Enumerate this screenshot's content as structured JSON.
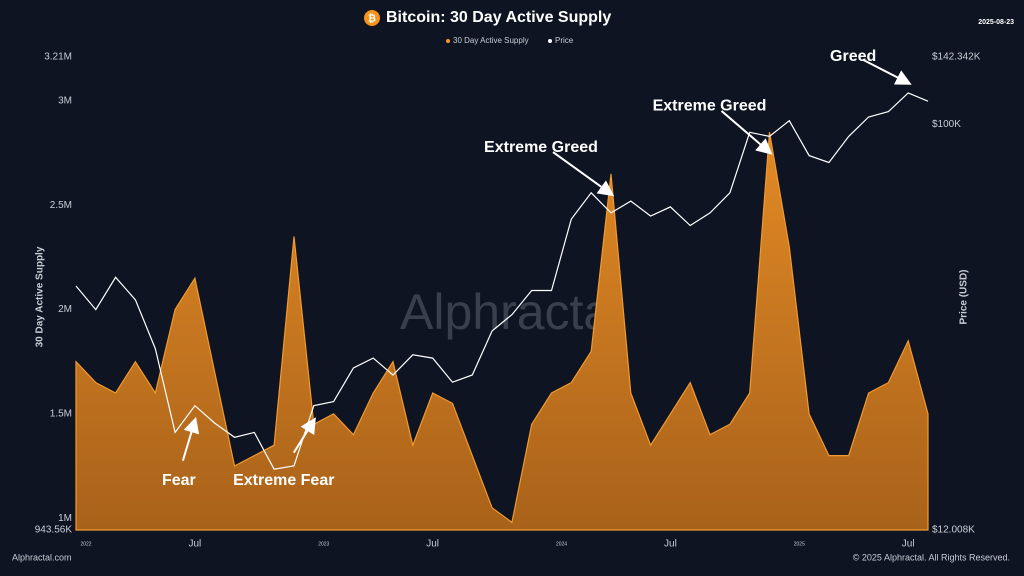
{
  "chart_data": {
    "type": "area_line",
    "title": "Bitcoin: 30 Day Active Supply",
    "date": "2025-08-23",
    "ylabel": "30 Day Active Supply",
    "y2label": "Price (USD)",
    "watermark": "Alphractal",
    "footer_left": "Alphractal.com",
    "footer_right": "© 2025 Alphractal. All Rights Reserved.",
    "x": [
      "2022-01",
      "2022-02",
      "2022-03",
      "2022-04",
      "2022-05",
      "2022-06",
      "2022-07",
      "2022-08",
      "2022-09",
      "2022-10",
      "2022-11",
      "2022-12",
      "2023-01",
      "2023-02",
      "2023-03",
      "2023-04",
      "2023-05",
      "2023-06",
      "2023-07",
      "2023-08",
      "2023-09",
      "2023-10",
      "2023-11",
      "2023-12",
      "2024-01",
      "2024-02",
      "2024-03",
      "2024-04",
      "2024-05",
      "2024-06",
      "2024-07",
      "2024-08",
      "2024-09",
      "2024-10",
      "2024-11",
      "2024-12",
      "2025-01",
      "2025-02",
      "2025-03",
      "2025-04",
      "2025-05",
      "2025-06",
      "2025-07",
      "2025-08"
    ],
    "xticks": [
      {
        "value": "2022-01",
        "label": "2022"
      },
      {
        "value": "2022-07",
        "label": "Jul"
      },
      {
        "value": "2023-01",
        "label": "2023"
      },
      {
        "value": "2023-07",
        "label": "Jul"
      },
      {
        "value": "2024-01",
        "label": "2024"
      },
      {
        "value": "2024-07",
        "label": "Jul"
      },
      {
        "value": "2025-01",
        "label": "2025"
      },
      {
        "value": "2025-07",
        "label": "Jul"
      }
    ],
    "ylim": [
      943560,
      3210000
    ],
    "yticks": [
      {
        "value": 943560,
        "label": "943.56K"
      },
      {
        "value": 1000000,
        "label": "1M"
      },
      {
        "value": 1500000,
        "label": "1.5M"
      },
      {
        "value": 2000000,
        "label": "2M"
      },
      {
        "value": 2500000,
        "label": "2.5M"
      },
      {
        "value": 3000000,
        "label": "3M"
      },
      {
        "value": 3210000,
        "label": "3.21M"
      }
    ],
    "y2lim": [
      12008,
      142342
    ],
    "y2_log": true,
    "y2ticks": [
      {
        "value": 12008,
        "label": "$12.008K"
      },
      {
        "value": 100000,
        "label": "$100K"
      },
      {
        "value": 142342,
        "label": "$142.342K"
      }
    ],
    "series": [
      {
        "name": "30 Day Active Supply",
        "color": "#f29a2e",
        "values": [
          1750000,
          1650000,
          1600000,
          1750000,
          1600000,
          2000000,
          2150000,
          1700000,
          1250000,
          1300000,
          1350000,
          2350000,
          1450000,
          1500000,
          1400000,
          1600000,
          1750000,
          1350000,
          1600000,
          1550000,
          1300000,
          1050000,
          980000,
          1450000,
          1600000,
          1650000,
          1800000,
          2650000,
          1600000,
          1350000,
          1500000,
          1650000,
          1400000,
          1450000,
          1600000,
          2850000,
          2300000,
          1500000,
          1300000,
          1300000,
          1600000,
          1650000,
          1850000,
          1500000
        ]
      },
      {
        "name": "Price",
        "color": "#ffffff",
        "axis": "y2",
        "values": [
          43000,
          38000,
          45000,
          40000,
          31000,
          20000,
          23000,
          21000,
          19500,
          20000,
          16500,
          16800,
          23000,
          23500,
          28000,
          29500,
          27000,
          30000,
          29500,
          26000,
          27000,
          34000,
          37000,
          42000,
          42000,
          61000,
          70000,
          63000,
          67000,
          62000,
          65000,
          59000,
          63000,
          70000,
          96000,
          94000,
          102000,
          85000,
          82000,
          94000,
          104000,
          107000,
          118000,
          113000
        ]
      }
    ],
    "annotations": [
      {
        "text": "Fear",
        "x": "2022-07"
      },
      {
        "text": "Extreme Fear",
        "x": "2023-01"
      },
      {
        "text": "Extreme Greed",
        "x": "2024-04"
      },
      {
        "text": "Extreme Greed",
        "x": "2024-12"
      },
      {
        "text": "Greed",
        "x": "2025-07"
      }
    ]
  }
}
